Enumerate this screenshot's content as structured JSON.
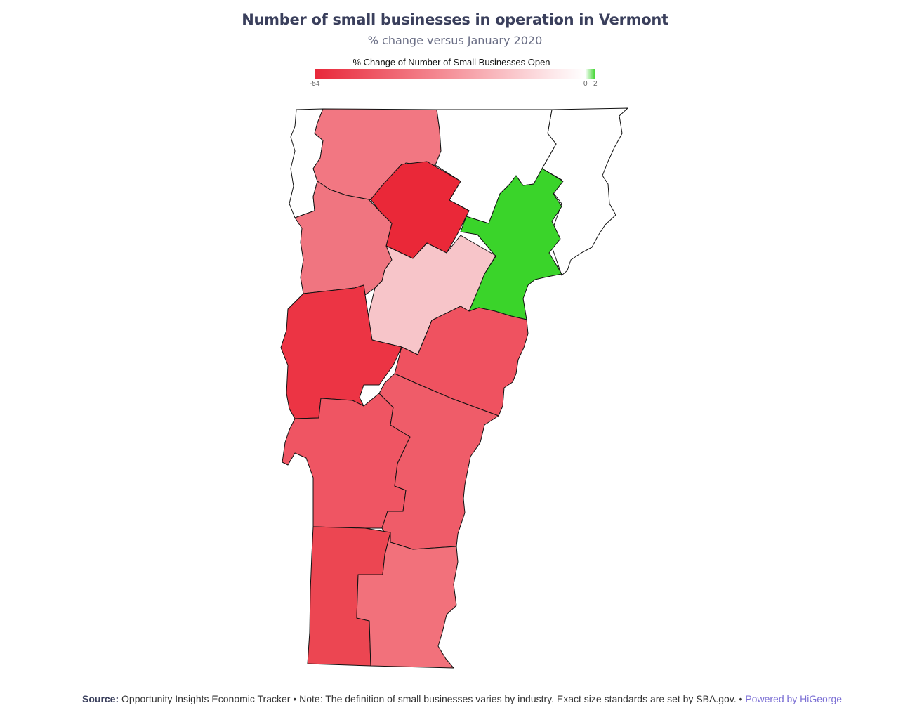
{
  "title": "Number of small businesses in operation in Vermont",
  "subtitle": "% change versus January 2020",
  "legend": {
    "title": "% Change of Number of Small Businesses Open",
    "min": "-54",
    "zero": "0",
    "max": "2",
    "colors": {
      "negative": "#e8283a",
      "neutral": "#ffffff",
      "positive": "#3ad42a"
    }
  },
  "footer": {
    "source_label": "Source:",
    "source_text": " Opportunity Insights Economic Tracker • Note: The definition of small businesses varies by industry. Exact size standards are set by SBA.gov. • ",
    "brand": "Powered by HiGeorge"
  },
  "map_data": {
    "region": "Vermont",
    "colors": {
      "franklin": "#f27782",
      "lamoille": "#ea2838",
      "orleans": "#3ad42a",
      "essex": "#ffffff",
      "grand_isle": "#ffffff",
      "chittenden": "#f07580",
      "washington": "#f7c5c9",
      "caledonia": "#ffffff",
      "addison": "#ec3444",
      "orange": "#ef5260",
      "rutland": "#ef5563",
      "windsor": "#ef5c69",
      "bennington": "#ec4652",
      "windham": "#f2717b"
    }
  }
}
